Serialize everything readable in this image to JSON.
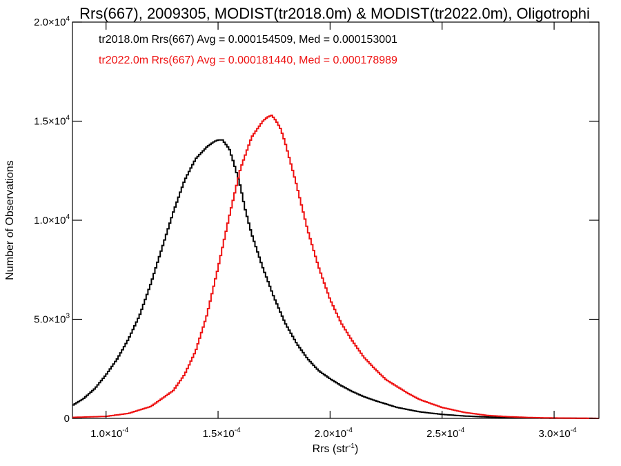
{
  "chart_data": {
    "type": "line",
    "step": true,
    "title": "Rrs(667), 2009305, MODIST(tr2018.0m) & MODIST(tr2022.0m), Oligotrophi",
    "xlabel": {
      "base": "Rrs (str",
      "exp": "-1",
      "close": ")"
    },
    "ylabel": "Number of Observations",
    "xlim": [
      8.5e-05,
      0.00032
    ],
    "ylim": [
      0,
      20000
    ],
    "x_ticks": [
      {
        "value": 0.0001,
        "mant": "1.0×10",
        "exp": "-4"
      },
      {
        "value": 0.00015,
        "mant": "1.5×10",
        "exp": "-4"
      },
      {
        "value": 0.0002,
        "mant": "2.0×10",
        "exp": "-4"
      },
      {
        "value": 0.00025,
        "mant": "2.5×10",
        "exp": "-4"
      },
      {
        "value": 0.0003,
        "mant": "3.0×10",
        "exp": "-4"
      }
    ],
    "y_ticks": [
      {
        "value": 0,
        "mant": "0",
        "exp": ""
      },
      {
        "value": 5000,
        "mant": "5.0×10",
        "exp": "3"
      },
      {
        "value": 10000,
        "mant": "1.0×10",
        "exp": "4"
      },
      {
        "value": 15000,
        "mant": "1.5×10",
        "exp": "4"
      },
      {
        "value": 20000,
        "mant": "2.0×10",
        "exp": "4"
      }
    ],
    "legend": [
      {
        "text": "tr2018.0m Rrs(667) Avg = 0.000154509, Med = 0.000153001",
        "color": "#000000"
      },
      {
        "text": "tr2022.0m Rrs(667) Avg = 0.000181440, Med = 0.000178989",
        "color": "#ee1111"
      }
    ],
    "legend_placement": "top-left",
    "grid": false,
    "series": [
      {
        "color": "#000000",
        "x": [
          8.5e-05,
          9e-05,
          9.5e-05,
          0.0001,
          0.000105,
          0.00011,
          0.000115,
          0.00012,
          0.000125,
          0.00013,
          0.000135,
          0.00014,
          0.000145,
          0.000148,
          0.00015,
          0.000152,
          0.000155,
          0.000157,
          0.00016,
          0.000162,
          0.000165,
          0.00017,
          0.000175,
          0.00018,
          0.000185,
          0.00019,
          0.000195,
          0.0002,
          0.000205,
          0.00021,
          0.000215,
          0.00022,
          0.00023,
          0.00024,
          0.00025,
          0.00026,
          0.00027,
          0.00028,
          0.00029,
          0.0003,
          0.00031,
          0.00032
        ],
        "y": [
          650,
          1000,
          1500,
          2200,
          3000,
          4000,
          5200,
          6800,
          8600,
          10400,
          12000,
          13100,
          13700,
          13950,
          14050,
          14050,
          13600,
          12900,
          11700,
          10600,
          9300,
          7600,
          6100,
          4800,
          3800,
          3000,
          2400,
          2000,
          1650,
          1350,
          1100,
          900,
          550,
          330,
          200,
          120,
          70,
          40,
          20,
          10,
          5,
          0
        ]
      },
      {
        "color": "#ee1111",
        "x": [
          8.5e-05,
          0.0001,
          0.00011,
          0.00012,
          0.00013,
          0.000135,
          0.00014,
          0.000145,
          0.00015,
          0.000155,
          0.00016,
          0.000165,
          0.00017,
          0.000172,
          0.000174,
          0.000176,
          0.000178,
          0.00018,
          0.000185,
          0.00019,
          0.000195,
          0.0002,
          0.000205,
          0.00021,
          0.000215,
          0.00022,
          0.000225,
          0.00023,
          0.000235,
          0.00024,
          0.00025,
          0.00026,
          0.00027,
          0.00028,
          0.00029,
          0.0003,
          0.00031,
          0.00032
        ],
        "y": [
          50,
          100,
          250,
          600,
          1400,
          2200,
          3400,
          5200,
          7600,
          10200,
          12600,
          14200,
          15000,
          15200,
          15300,
          15000,
          14600,
          13900,
          11800,
          9500,
          7600,
          6000,
          4800,
          3900,
          3100,
          2500,
          1950,
          1600,
          1250,
          950,
          550,
          300,
          150,
          80,
          40,
          20,
          10,
          0
        ]
      }
    ]
  }
}
